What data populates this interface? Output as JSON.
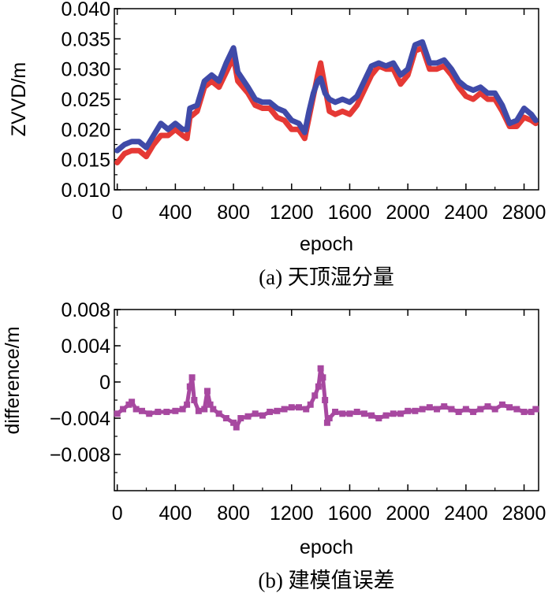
{
  "chart_data": [
    {
      "type": "line",
      "caption": "(a) 天顶湿分量",
      "xlabel": "epoch",
      "ylabel": "ZVVD/m",
      "xlim": [
        -20,
        2900
      ],
      "ylim": [
        0.01,
        0.04
      ],
      "x_ticks": [
        0,
        400,
        800,
        1200,
        1600,
        2000,
        2400,
        2800
      ],
      "x_tick_labels": [
        "0",
        "400",
        "800",
        "1200",
        "1600",
        "2000",
        "2400",
        "2800"
      ],
      "y_ticks": [
        0.01,
        0.015,
        0.02,
        0.025,
        0.03,
        0.035,
        0.04
      ],
      "y_tick_labels": [
        "0.010",
        "0.015",
        "0.020",
        "0.025",
        "0.030",
        "0.035",
        "0.040"
      ],
      "x": [
        0,
        50,
        100,
        150,
        200,
        250,
        300,
        350,
        400,
        450,
        480,
        500,
        550,
        600,
        650,
        700,
        750,
        800,
        830,
        900,
        950,
        1000,
        1050,
        1100,
        1150,
        1200,
        1250,
        1290,
        1320,
        1350,
        1380,
        1400,
        1430,
        1460,
        1500,
        1550,
        1600,
        1650,
        1700,
        1750,
        1800,
        1850,
        1900,
        1950,
        2000,
        2050,
        2100,
        2150,
        2200,
        2250,
        2300,
        2350,
        2400,
        2450,
        2500,
        2550,
        2600,
        2650,
        2700,
        2750,
        2800,
        2850,
        2880
      ],
      "series": [
        {
          "color": "#e53935",
          "values": [
            0.0145,
            0.016,
            0.0165,
            0.0165,
            0.0155,
            0.0175,
            0.019,
            0.019,
            0.02,
            0.019,
            0.0185,
            0.022,
            0.023,
            0.027,
            0.028,
            0.027,
            0.0295,
            0.032,
            0.028,
            0.026,
            0.024,
            0.0235,
            0.0235,
            0.022,
            0.0215,
            0.02,
            0.02,
            0.0185,
            0.022,
            0.0255,
            0.029,
            0.031,
            0.027,
            0.023,
            0.0225,
            0.023,
            0.0225,
            0.024,
            0.0265,
            0.029,
            0.0305,
            0.03,
            0.03,
            0.0275,
            0.029,
            0.033,
            0.0335,
            0.03,
            0.03,
            0.0305,
            0.029,
            0.027,
            0.0255,
            0.025,
            0.026,
            0.025,
            0.025,
            0.023,
            0.0205,
            0.0205,
            0.022,
            0.0215,
            0.021
          ]
        },
        {
          "color": "#3f4aa8",
          "values": [
            0.0165,
            0.0175,
            0.018,
            0.018,
            0.017,
            0.019,
            0.021,
            0.02,
            0.021,
            0.02,
            0.02,
            0.0235,
            0.024,
            0.028,
            0.029,
            0.028,
            0.031,
            0.0335,
            0.0295,
            0.027,
            0.025,
            0.0245,
            0.0245,
            0.0235,
            0.023,
            0.0215,
            0.021,
            0.0195,
            0.023,
            0.026,
            0.028,
            0.0285,
            0.026,
            0.025,
            0.0245,
            0.025,
            0.0245,
            0.0255,
            0.028,
            0.0305,
            0.031,
            0.0305,
            0.031,
            0.029,
            0.03,
            0.034,
            0.0345,
            0.031,
            0.031,
            0.0315,
            0.03,
            0.028,
            0.027,
            0.0265,
            0.027,
            0.026,
            0.026,
            0.024,
            0.021,
            0.0215,
            0.0235,
            0.0225,
            0.0215
          ]
        }
      ]
    },
    {
      "type": "scatter",
      "caption": "(b) 建模值误差",
      "xlabel": "epoch",
      "ylabel": "difference/m",
      "xlim": [
        -20,
        2900
      ],
      "ylim": [
        -0.012,
        0.008
      ],
      "x_ticks": [
        0,
        400,
        800,
        1200,
        1600,
        2000,
        2400,
        2800
      ],
      "x_tick_labels": [
        "0",
        "400",
        "800",
        "1200",
        "1600",
        "2000",
        "2400",
        "2800"
      ],
      "y_ticks": [
        0.008,
        0.004,
        0,
        -0.004,
        -0.008
      ],
      "y_tick_labels": [
        "0.008",
        "0.004",
        "0",
        "−0.004",
        "−0.008"
      ],
      "x": [
        0,
        40,
        80,
        100,
        130,
        170,
        220,
        280,
        340,
        400,
        450,
        480,
        500,
        515,
        530,
        560,
        600,
        620,
        640,
        660,
        700,
        750,
        800,
        820,
        850,
        900,
        950,
        1000,
        1050,
        1100,
        1150,
        1200,
        1250,
        1300,
        1330,
        1360,
        1385,
        1400,
        1415,
        1430,
        1445,
        1460,
        1500,
        1550,
        1600,
        1650,
        1700,
        1750,
        1800,
        1850,
        1900,
        1950,
        2000,
        2050,
        2100,
        2150,
        2200,
        2250,
        2300,
        2350,
        2400,
        2450,
        2500,
        2550,
        2600,
        2650,
        2700,
        2750,
        2800,
        2850,
        2880
      ],
      "series": [
        {
          "color": "#a748a0",
          "values": [
            -0.0035,
            -0.003,
            -0.0025,
            -0.0022,
            -0.003,
            -0.0032,
            -0.0035,
            -0.0033,
            -0.0033,
            -0.0032,
            -0.003,
            -0.0025,
            -0.0005,
            0.0005,
            -0.002,
            -0.0032,
            -0.003,
            -0.001,
            -0.0025,
            -0.003,
            -0.0035,
            -0.004,
            -0.0045,
            -0.005,
            -0.004,
            -0.0038,
            -0.0035,
            -0.0037,
            -0.0033,
            -0.0032,
            -0.003,
            -0.0028,
            -0.0028,
            -0.003,
            -0.0025,
            -0.0015,
            -0.0005,
            0.0015,
            0.0005,
            -0.002,
            -0.0045,
            -0.004,
            -0.0033,
            -0.0035,
            -0.0035,
            -0.0033,
            -0.0035,
            -0.0037,
            -0.004,
            -0.0037,
            -0.0035,
            -0.0035,
            -0.0032,
            -0.0032,
            -0.003,
            -0.0028,
            -0.003,
            -0.0027,
            -0.003,
            -0.0033,
            -0.003,
            -0.0033,
            -0.003,
            -0.0027,
            -0.003,
            -0.0025,
            -0.0028,
            -0.003,
            -0.0033,
            -0.0033,
            -0.003
          ]
        }
      ]
    }
  ]
}
